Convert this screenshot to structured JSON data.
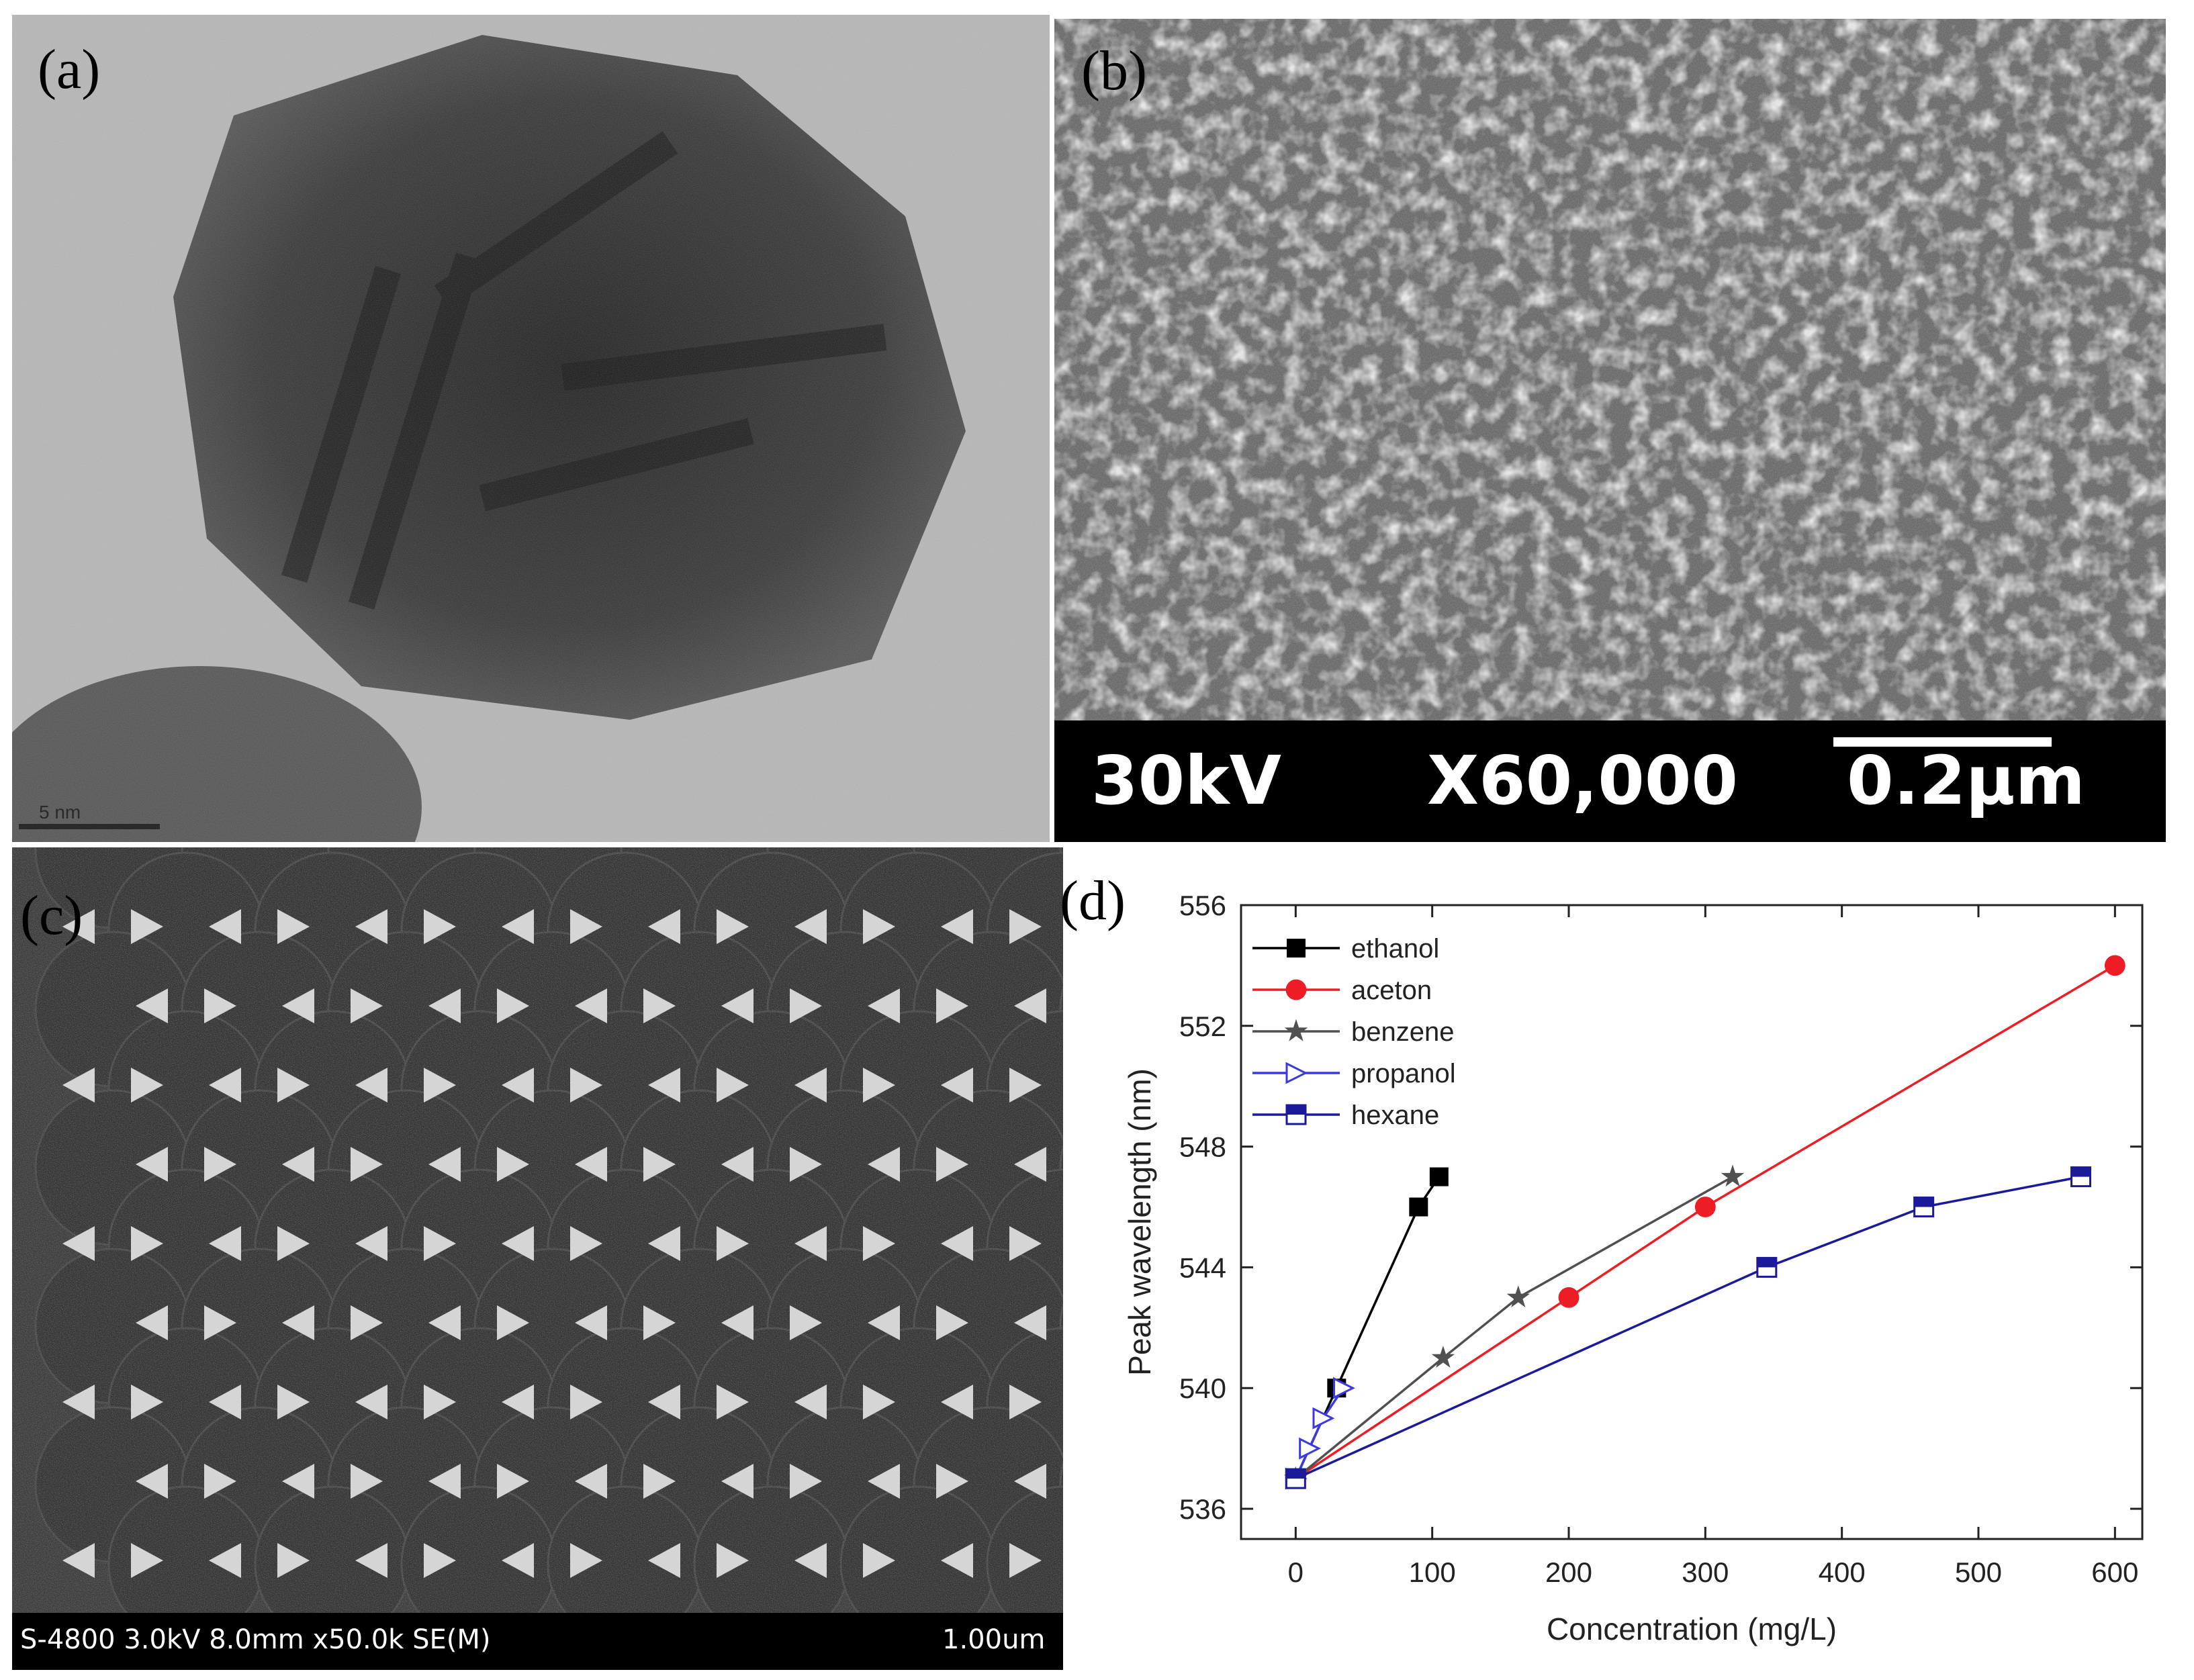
{
  "panels": {
    "a": {
      "label": "(a)",
      "scale_text": "5 nm"
    },
    "b": {
      "label": "(b)",
      "voltage": "30kV",
      "magnification": "X60,000",
      "scale": "0.2μm"
    },
    "c": {
      "label": "(c)",
      "info": "S-4800 3.0kV 8.0mm x50.0k SE(M)",
      "scale": "1.00um"
    },
    "d": {
      "label": "(d)"
    }
  },
  "chart_data": {
    "type": "line",
    "xlabel": "Concentration (mg/L)",
    "ylabel": "Peak wavelength (nm)",
    "xlim": [
      -40,
      620
    ],
    "ylim": [
      535,
      556
    ],
    "xticks": [
      0,
      100,
      200,
      300,
      400,
      500,
      600
    ],
    "yticks": [
      536,
      540,
      544,
      548,
      552,
      556
    ],
    "grid": false,
    "legend_position": "top-left",
    "series": [
      {
        "name": "ethanol",
        "color": "#000000",
        "marker": "square-filled",
        "x": [
          0,
          30,
          90,
          105
        ],
        "y": [
          537,
          540,
          546,
          547
        ]
      },
      {
        "name": "aceton",
        "color": "#ee1c24",
        "marker": "circle-filled",
        "x": [
          0,
          200,
          300,
          600
        ],
        "y": [
          537,
          543,
          546,
          554
        ]
      },
      {
        "name": "benzene",
        "color": "#505050",
        "marker": "star",
        "x": [
          0,
          108,
          163,
          320
        ],
        "y": [
          537,
          541,
          543,
          547
        ]
      },
      {
        "name": "propanol",
        "color": "#3a3ae0",
        "marker": "triangle-right-open",
        "x": [
          0,
          10,
          20,
          35
        ],
        "y": [
          537,
          538,
          539,
          540
        ]
      },
      {
        "name": "hexane",
        "color": "#1a1a9a",
        "marker": "square-half",
        "x": [
          0,
          345,
          460,
          575
        ],
        "y": [
          537,
          544,
          546,
          547
        ]
      }
    ]
  }
}
